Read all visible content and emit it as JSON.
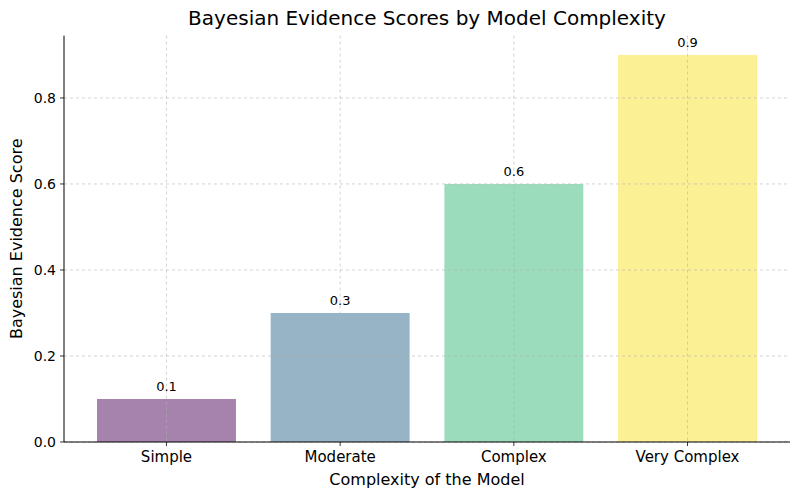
{
  "chart_data": {
    "type": "bar",
    "title": "Bayesian Evidence Scores by Model Complexity",
    "x_label": "Complexity of the Model",
    "y_label": "Bayesian Evidence Score",
    "categories": [
      "Simple",
      "Moderate",
      "Complex",
      "Very Complex"
    ],
    "values": [
      0.1,
      0.3,
      0.6,
      0.9
    ],
    "colors": [
      "#7f4f8a",
      "#6b94ae",
      "#70cd9f",
      "#fbe966"
    ],
    "ylim": [
      0,
      0.945
    ],
    "yticks": [
      {
        "value": 0,
        "label": "0.0"
      },
      0.2,
      0.4,
      0.6,
      0.8
    ],
    "grid": true,
    "data_labels": true
  }
}
